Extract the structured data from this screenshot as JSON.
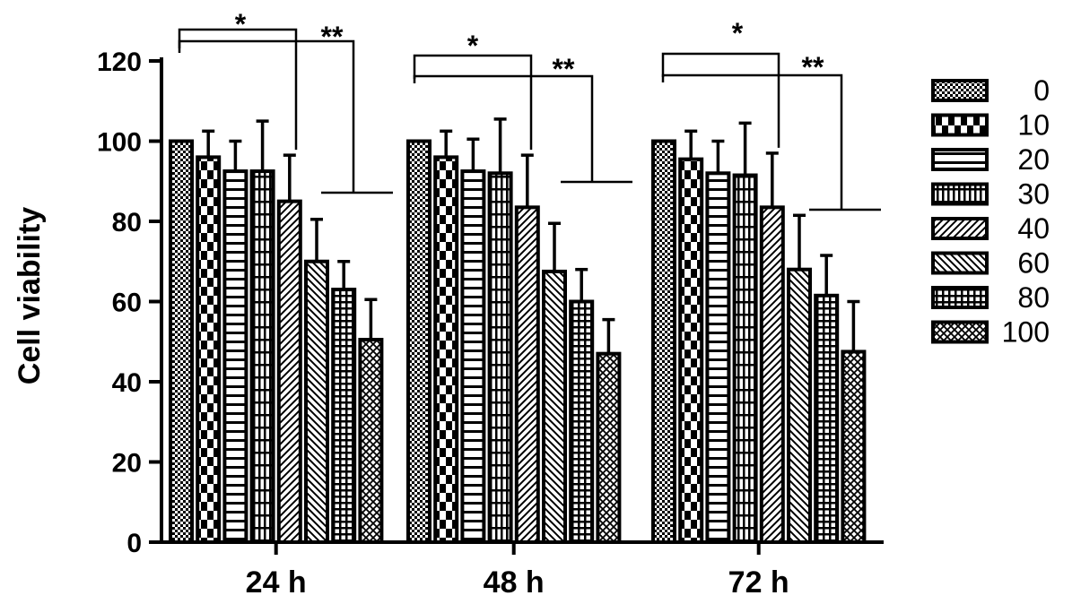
{
  "chart_data": {
    "type": "bar",
    "title": "",
    "xlabel": "",
    "ylabel": "Cell viability",
    "ylim": [
      0,
      120
    ],
    "yticks": [
      "0",
      "20",
      "40",
      "60",
      "80",
      "100",
      "120"
    ],
    "grid": false,
    "legend_position": "right",
    "categories": [
      "24 h",
      "48 h",
      "72 h"
    ],
    "series": [
      {
        "name": "0",
        "pattern": "checker",
        "values": [
          100,
          100,
          100
        ],
        "errors": [
          0,
          0,
          0
        ]
      },
      {
        "name": "10",
        "pattern": "checker-large",
        "values": [
          96,
          96,
          95.5
        ],
        "errors": [
          6.5,
          6.5,
          7
        ]
      },
      {
        "name": "20",
        "pattern": "hlines-wide",
        "values": [
          92.5,
          92.5,
          92
        ],
        "errors": [
          7.5,
          8,
          8
        ]
      },
      {
        "name": "30",
        "pattern": "vlines",
        "values": [
          92.5,
          92,
          91.5
        ],
        "errors": [
          12.5,
          13.5,
          13
        ]
      },
      {
        "name": "40",
        "pattern": "diag-up",
        "values": [
          85,
          83.5,
          83.5
        ],
        "errors": [
          11.5,
          13,
          13.5
        ]
      },
      {
        "name": "60",
        "pattern": "diag-down",
        "values": [
          70,
          67.5,
          68
        ],
        "errors": [
          10.5,
          12,
          13.5
        ]
      },
      {
        "name": "80",
        "pattern": "grid",
        "values": [
          63,
          60,
          61.5
        ],
        "errors": [
          7,
          8,
          10
        ]
      },
      {
        "name": "100",
        "pattern": "crosshatch",
        "values": [
          50.5,
          47,
          47.5
        ],
        "errors": [
          10,
          8.5,
          12.5
        ]
      }
    ],
    "significance": [
      {
        "category": "24 h",
        "star1": "*",
        "star2": "**"
      },
      {
        "category": "48 h",
        "star1": "*",
        "star2": "**"
      },
      {
        "category": "72 h",
        "star1": "*",
        "star2": "**"
      }
    ]
  }
}
